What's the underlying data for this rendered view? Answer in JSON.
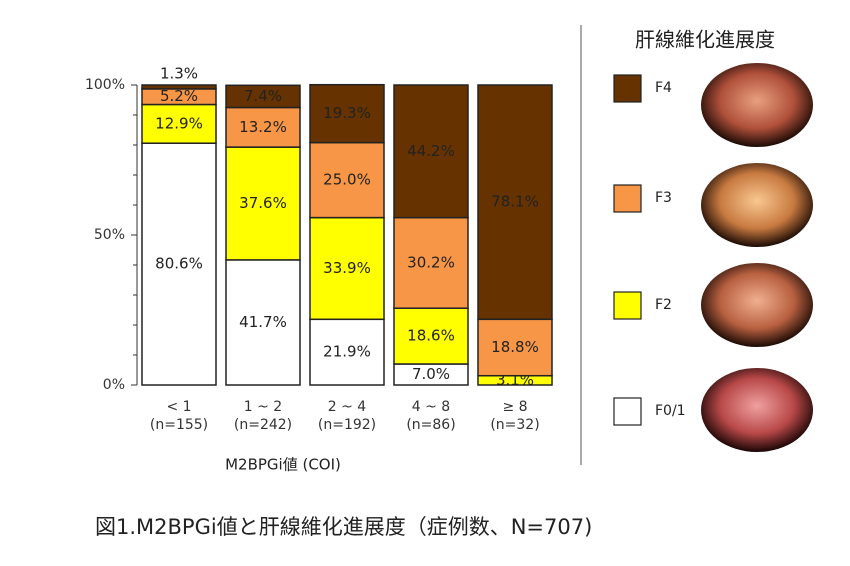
{
  "chart_data": {
    "type": "stacked_bar",
    "x_label": "M2BPGi値 (COI)",
    "categories": [
      "< 1",
      "1 ~ 2",
      "2 ~ 4",
      "4 ~ 8",
      "≥ 8"
    ],
    "category_counts": [
      "(n=155)",
      "(n=242)",
      "(n=192)",
      "(n=86)",
      "(n=32)"
    ],
    "ylim": [
      0,
      100
    ],
    "yticks": [
      {
        "value": 0,
        "label": "0%"
      },
      {
        "value": 50,
        "label": "50%"
      },
      {
        "value": 100,
        "label": "100%"
      }
    ],
    "minor_yticks": [
      10,
      20,
      30,
      40,
      60,
      70,
      80,
      90
    ],
    "legend_title": "肝線維化進展度",
    "series": [
      {
        "name": "F0/1",
        "color": "#ffffff",
        "values": [
          80.6,
          41.7,
          21.9,
          7.0,
          null
        ],
        "value_labels": [
          "80.6%",
          "41.7%",
          "21.9%",
          "7.0%",
          null
        ]
      },
      {
        "name": "F2",
        "color": "#ffff00",
        "values": [
          12.9,
          37.6,
          33.9,
          18.6,
          3.1
        ],
        "value_labels": [
          "12.9%",
          "37.6%",
          "33.9%",
          "18.6%",
          "3.1%"
        ]
      },
      {
        "name": "F3",
        "color": "#f79646",
        "values": [
          5.2,
          13.2,
          25.0,
          30.2,
          18.8
        ],
        "value_labels": [
          "5.2%",
          "13.2%",
          "25.0%",
          "30.2%",
          "18.8%"
        ]
      },
      {
        "name": "F4",
        "color": "#663300",
        "values": [
          1.3,
          7.4,
          19.3,
          44.2,
          78.1
        ],
        "value_labels": [
          "1.3%",
          "7.4%",
          "19.3%",
          "44.2%",
          "78.1%"
        ]
      }
    ],
    "caption": "図1.M2BPGi値と肝線維化進展度（症例数、N=707)"
  }
}
